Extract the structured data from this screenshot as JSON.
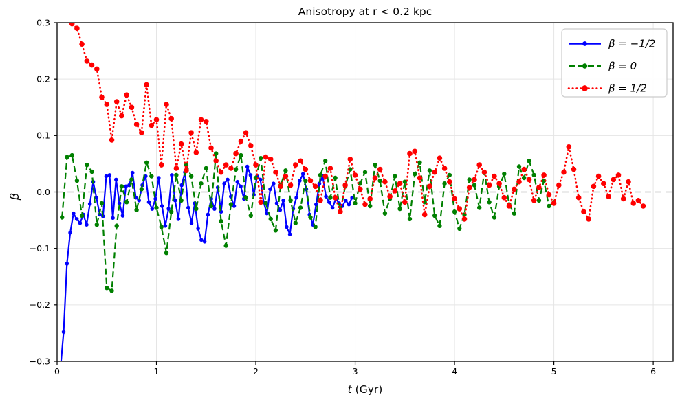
{
  "figure": {
    "xlabel_italic": "t",
    "xlabel_rest": " (Gyr)",
    "ylabel": "β"
  },
  "chart_data": {
    "type": "line",
    "title": "Anisotropy at r < 0.2 kpc",
    "xlabel": "t (Gyr)",
    "ylabel": "β",
    "xlim": [
      0,
      6.2
    ],
    "ylim": [
      -0.3,
      0.3
    ],
    "xticks": [
      0,
      1,
      2,
      3,
      4,
      5,
      6
    ],
    "yticks": [
      -0.3,
      -0.2,
      -0.1,
      0.0,
      0.1,
      0.2,
      0.3
    ],
    "grid": true,
    "grid_color": "#e5e5e5",
    "legend_position": "upper right",
    "zero_line": {
      "y": 0.0,
      "style": "dashed",
      "color": "#b0b0b0"
    },
    "series": [
      {
        "name": "β = −1/2",
        "color": "#0000ff",
        "line_style": "solid",
        "marker": "circle",
        "x": [
          0.033,
          0.066,
          0.099,
          0.132,
          0.165,
          0.198,
          0.231,
          0.264,
          0.297,
          0.33,
          0.363,
          0.396,
          0.429,
          0.462,
          0.495,
          0.528,
          0.561,
          0.594,
          0.627,
          0.66,
          0.693,
          0.726,
          0.759,
          0.792,
          0.825,
          0.858,
          0.891,
          0.924,
          0.957,
          0.99,
          1.023,
          1.056,
          1.089,
          1.122,
          1.155,
          1.188,
          1.221,
          1.254,
          1.287,
          1.32,
          1.353,
          1.386,
          1.419,
          1.452,
          1.485,
          1.518,
          1.551,
          1.584,
          1.617,
          1.65,
          1.683,
          1.716,
          1.749,
          1.782,
          1.815,
          1.848,
          1.881,
          1.914,
          1.947,
          1.98,
          2.013,
          2.046,
          2.079,
          2.112,
          2.145,
          2.178,
          2.211,
          2.244,
          2.277,
          2.31,
          2.343,
          2.376,
          2.409,
          2.442,
          2.475,
          2.508,
          2.541,
          2.574,
          2.607,
          2.64,
          2.673,
          2.706,
          2.739,
          2.772,
          2.805,
          2.838,
          2.871,
          2.904,
          2.937,
          2.97
        ],
        "y": [
          -0.315,
          -0.248,
          -0.127,
          -0.072,
          -0.038,
          -0.048,
          -0.055,
          -0.04,
          -0.058,
          -0.021,
          0.018,
          -0.01,
          -0.04,
          -0.043,
          0.028,
          0.03,
          -0.046,
          0.022,
          -0.02,
          -0.042,
          0.01,
          0.012,
          0.034,
          -0.01,
          -0.015,
          0.012,
          0.028,
          -0.018,
          -0.03,
          -0.012,
          0.025,
          -0.025,
          -0.06,
          -0.03,
          0.03,
          -0.015,
          -0.048,
          0.012,
          0.035,
          -0.028,
          -0.055,
          -0.02,
          -0.065,
          -0.085,
          -0.088,
          -0.04,
          -0.012,
          -0.03,
          0.008,
          -0.035,
          0.015,
          0.022,
          -0.008,
          -0.025,
          0.018,
          0.01,
          -0.012,
          0.045,
          0.03,
          -0.005,
          0.028,
          0.022,
          -0.018,
          -0.038,
          0.005,
          0.015,
          -0.02,
          -0.032,
          -0.015,
          -0.062,
          -0.075,
          -0.03,
          -0.01,
          0.02,
          0.032,
          0.005,
          -0.04,
          -0.058,
          -0.022,
          0.015,
          0.028,
          -0.008,
          -0.018,
          -0.028,
          -0.012,
          -0.02,
          -0.025,
          -0.015,
          -0.022,
          -0.01
        ]
      },
      {
        "name": "β = 0",
        "color": "#008000",
        "line_style": "dashed",
        "marker": "circle",
        "x": [
          0.05,
          0.1,
          0.15,
          0.2,
          0.25,
          0.3,
          0.35,
          0.4,
          0.45,
          0.5,
          0.55,
          0.6,
          0.65,
          0.7,
          0.75,
          0.8,
          0.85,
          0.9,
          0.95,
          1.0,
          1.05,
          1.1,
          1.15,
          1.2,
          1.25,
          1.3,
          1.35,
          1.4,
          1.45,
          1.5,
          1.55,
          1.6,
          1.65,
          1.7,
          1.75,
          1.8,
          1.85,
          1.9,
          1.95,
          2.0,
          2.05,
          2.1,
          2.15,
          2.2,
          2.25,
          2.3,
          2.35,
          2.4,
          2.45,
          2.5,
          2.55,
          2.6,
          2.65,
          2.7,
          2.75,
          2.8,
          2.85,
          2.9,
          2.95,
          3.0,
          3.05,
          3.1,
          3.15,
          3.2,
          3.25,
          3.3,
          3.35,
          3.4,
          3.45,
          3.5,
          3.55,
          3.6,
          3.65,
          3.7,
          3.75,
          3.8,
          3.85,
          3.9,
          3.95,
          4.0,
          4.05,
          4.1,
          4.15,
          4.2,
          4.25,
          4.3,
          4.35,
          4.4,
          4.45,
          4.5,
          4.55,
          4.6,
          4.65,
          4.7,
          4.75,
          4.8,
          4.85,
          4.9,
          4.95,
          5.0
        ],
        "y": [
          -0.045,
          0.062,
          0.065,
          0.02,
          -0.042,
          0.048,
          0.036,
          -0.058,
          -0.02,
          -0.17,
          -0.175,
          -0.06,
          0.01,
          -0.018,
          0.022,
          -0.032,
          0.005,
          0.052,
          0.028,
          -0.028,
          -0.062,
          -0.108,
          -0.035,
          0.03,
          -0.015,
          0.048,
          0.028,
          -0.03,
          0.015,
          0.042,
          -0.025,
          0.068,
          -0.052,
          -0.095,
          -0.022,
          0.04,
          0.065,
          -0.01,
          -0.042,
          0.025,
          0.06,
          -0.02,
          -0.048,
          -0.068,
          0.012,
          0.038,
          -0.015,
          -0.055,
          -0.028,
          0.02,
          -0.045,
          -0.062,
          0.03,
          0.055,
          -0.01,
          0.025,
          -0.035,
          0.01,
          0.04,
          -0.02,
          0.015,
          0.035,
          -0.025,
          0.048,
          0.02,
          -0.038,
          -0.012,
          0.028,
          -0.03,
          0.018,
          -0.048,
          0.032,
          0.052,
          -0.018,
          0.038,
          -0.042,
          -0.06,
          0.015,
          0.03,
          -0.035,
          -0.065,
          -0.04,
          0.022,
          0.012,
          -0.028,
          0.035,
          -0.018,
          -0.045,
          0.01,
          0.032,
          -0.022,
          -0.038,
          0.045,
          0.025,
          0.055,
          0.03,
          -0.015,
          0.02,
          -0.025,
          -0.018
        ]
      },
      {
        "name": "β = 1/2",
        "color": "#ff0000",
        "line_style": "dotted",
        "marker": "circle",
        "x": [
          0.05,
          0.1,
          0.15,
          0.2,
          0.25,
          0.3,
          0.35,
          0.4,
          0.45,
          0.5,
          0.55,
          0.6,
          0.65,
          0.7,
          0.75,
          0.8,
          0.85,
          0.9,
          0.95,
          1.0,
          1.05,
          1.1,
          1.15,
          1.2,
          1.25,
          1.3,
          1.35,
          1.4,
          1.45,
          1.5,
          1.55,
          1.6,
          1.65,
          1.7,
          1.75,
          1.8,
          1.85,
          1.9,
          1.95,
          2.0,
          2.05,
          2.1,
          2.15,
          2.2,
          2.25,
          2.3,
          2.35,
          2.4,
          2.45,
          2.5,
          2.55,
          2.6,
          2.65,
          2.7,
          2.75,
          2.8,
          2.85,
          2.9,
          2.95,
          3.0,
          3.05,
          3.1,
          3.15,
          3.2,
          3.25,
          3.3,
          3.35,
          3.4,
          3.45,
          3.5,
          3.55,
          3.6,
          3.65,
          3.7,
          3.75,
          3.8,
          3.85,
          3.9,
          3.95,
          4.0,
          4.05,
          4.1,
          4.15,
          4.2,
          4.25,
          4.3,
          4.35,
          4.4,
          4.45,
          4.5,
          4.55,
          4.6,
          4.65,
          4.7,
          4.75,
          4.8,
          4.85,
          4.9,
          4.95,
          5.0,
          5.05,
          5.1,
          5.15,
          5.2,
          5.25,
          5.3,
          5.35,
          5.4,
          5.45,
          5.5,
          5.55,
          5.6,
          5.65,
          5.7,
          5.75,
          5.8,
          5.85,
          5.9
        ],
        "y": [
          0.38,
          0.33,
          0.298,
          0.29,
          0.262,
          0.232,
          0.225,
          0.218,
          0.168,
          0.155,
          0.092,
          0.16,
          0.135,
          0.172,
          0.15,
          0.12,
          0.105,
          0.19,
          0.118,
          0.128,
          0.048,
          0.155,
          0.13,
          0.042,
          0.085,
          0.038,
          0.105,
          0.07,
          0.128,
          0.125,
          0.078,
          0.055,
          0.035,
          0.048,
          0.042,
          0.068,
          0.09,
          0.105,
          0.082,
          0.048,
          -0.018,
          0.062,
          0.058,
          0.035,
          0.01,
          0.028,
          0.012,
          0.048,
          0.055,
          0.04,
          0.02,
          0.01,
          -0.015,
          0.028,
          0.042,
          -0.01,
          -0.035,
          0.012,
          0.058,
          0.03,
          0.005,
          -0.022,
          -0.012,
          0.025,
          0.04,
          0.018,
          -0.008,
          0.002,
          0.015,
          -0.018,
          0.068,
          0.072,
          0.025,
          -0.04,
          0.01,
          0.035,
          0.06,
          0.042,
          0.018,
          -0.012,
          -0.03,
          -0.048,
          0.008,
          0.022,
          0.048,
          0.035,
          0.012,
          0.028,
          0.015,
          -0.01,
          -0.025,
          0.005,
          0.018,
          0.04,
          0.022,
          -0.015,
          0.008,
          0.03,
          -0.005,
          -0.02,
          0.012,
          0.035,
          0.08,
          0.04,
          -0.01,
          -0.035,
          -0.048,
          0.01,
          0.028,
          0.015,
          -0.008,
          0.022,
          0.03,
          -0.012,
          0.018,
          -0.02,
          -0.015,
          -0.025
        ]
      }
    ]
  }
}
